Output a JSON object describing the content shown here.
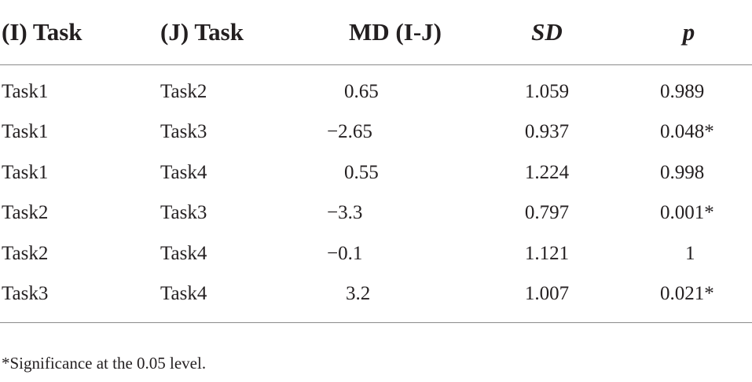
{
  "table": {
    "headers": [
      "(I) Task",
      "(J) Task",
      "MD (I-J)",
      "SD",
      "p"
    ],
    "rows": [
      {
        "i": "Task1",
        "j": "Task2",
        "md": "0.65",
        "sd": "1.059",
        "p": "0.989"
      },
      {
        "i": "Task1",
        "j": "Task3",
        "md": "−2.65",
        "sd": "0.937",
        "p": "0.048*"
      },
      {
        "i": "Task1",
        "j": "Task4",
        "md": "0.55",
        "sd": "1.224",
        "p": "0.998"
      },
      {
        "i": "Task2",
        "j": "Task3",
        "md": "−3.3",
        "sd": "0.797",
        "p": "0.001*"
      },
      {
        "i": "Task2",
        "j": "Task4",
        "md": "−0.1",
        "sd": "1.121",
        "p": "1"
      },
      {
        "i": "Task3",
        "j": "Task4",
        "md": "3.2",
        "sd": "1.007",
        "p": "0.021*"
      }
    ]
  },
  "footnote": "*Significance at the 0.05 level."
}
